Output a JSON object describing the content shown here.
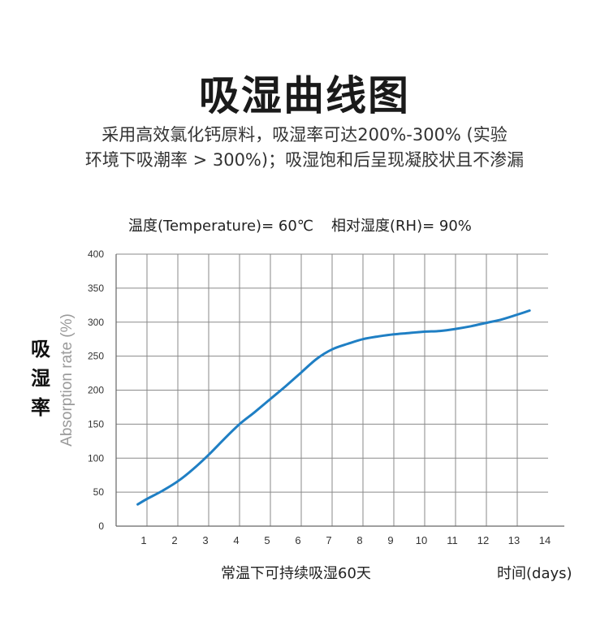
{
  "heading": "吸湿曲线图",
  "description": [
    "采用高效氯化钙原料，吸湿率可达200%-300% (实验",
    "环境下吸潮率 > 300%)；吸湿饱和后呈现凝胶状且不渗漏"
  ],
  "conditions": {
    "temperature": "温度(Temperature)= 60℃",
    "humidity": "相对湿度(RH)= 90%"
  },
  "caption": "常温下可持续吸湿60天",
  "chart_data": {
    "type": "line",
    "xlabel": "时间(days)",
    "ylabel": "Absorption rate (%)",
    "ylabel_cn": "吸湿率",
    "xlim": [
      0,
      14
    ],
    "ylim": [
      0,
      400
    ],
    "x_ticks": [
      1,
      2,
      3,
      4,
      5,
      6,
      7,
      8,
      9,
      10,
      11,
      12,
      13,
      14
    ],
    "y_ticks": [
      0,
      50,
      100,
      150,
      200,
      250,
      300,
      350,
      400
    ],
    "grid": true,
    "series": [
      {
        "color": "#1f7fc4",
        "x": [
          0.7,
          1,
          1.5,
          2,
          2.5,
          3,
          3.5,
          4,
          4.5,
          5,
          5.5,
          6,
          6.5,
          7,
          7.5,
          8,
          8.5,
          9,
          9.5,
          10,
          10.5,
          11,
          11.5,
          12,
          12.5,
          13,
          13.4
        ],
        "y": [
          32,
          40,
          52,
          66,
          84,
          105,
          128,
          150,
          168,
          187,
          206,
          226,
          246,
          260,
          268,
          275,
          279,
          282,
          284,
          286,
          287,
          290,
          294,
          299,
          304,
          311,
          317
        ]
      }
    ]
  }
}
